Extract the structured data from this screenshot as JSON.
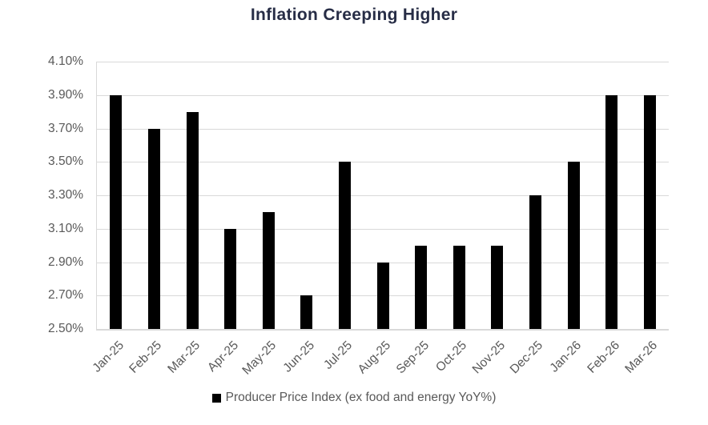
{
  "chart_data": {
    "type": "bar",
    "title": "Inflation Creeping Higher",
    "categories": [
      "Jan-25",
      "Feb-25",
      "Mar-25",
      "Apr-25",
      "May-25",
      "Jun-25",
      "Jul-25",
      "Aug-25",
      "Sep-25",
      "Oct-25",
      "Nov-25",
      "Dec-25",
      "Jan-26",
      "Feb-26",
      "Mar-26"
    ],
    "values": [
      3.9,
      3.7,
      3.8,
      3.1,
      3.2,
      2.7,
      3.5,
      2.9,
      3.0,
      3.0,
      3.0,
      3.3,
      3.5,
      3.9,
      3.9
    ],
    "unit": "%",
    "ylim": [
      2.5,
      4.1
    ],
    "y_step": 0.2,
    "y_ticks": [
      "4.10%",
      "3.90%",
      "3.70%",
      "3.50%",
      "3.30%",
      "3.10%",
      "2.90%",
      "2.70%",
      "2.50%"
    ],
    "xlabel": "",
    "ylabel": "",
    "grid": true,
    "legend_position": "bottom",
    "legend": [
      {
        "label": "Producer Price Index (ex food and energy YoY%)",
        "color": "#000000"
      }
    ],
    "colors": {
      "bar": "#000000",
      "title": "#272D46",
      "axis_text": "#595959",
      "gridline": "#D9D9D9",
      "background": "#FFFFFF"
    }
  }
}
